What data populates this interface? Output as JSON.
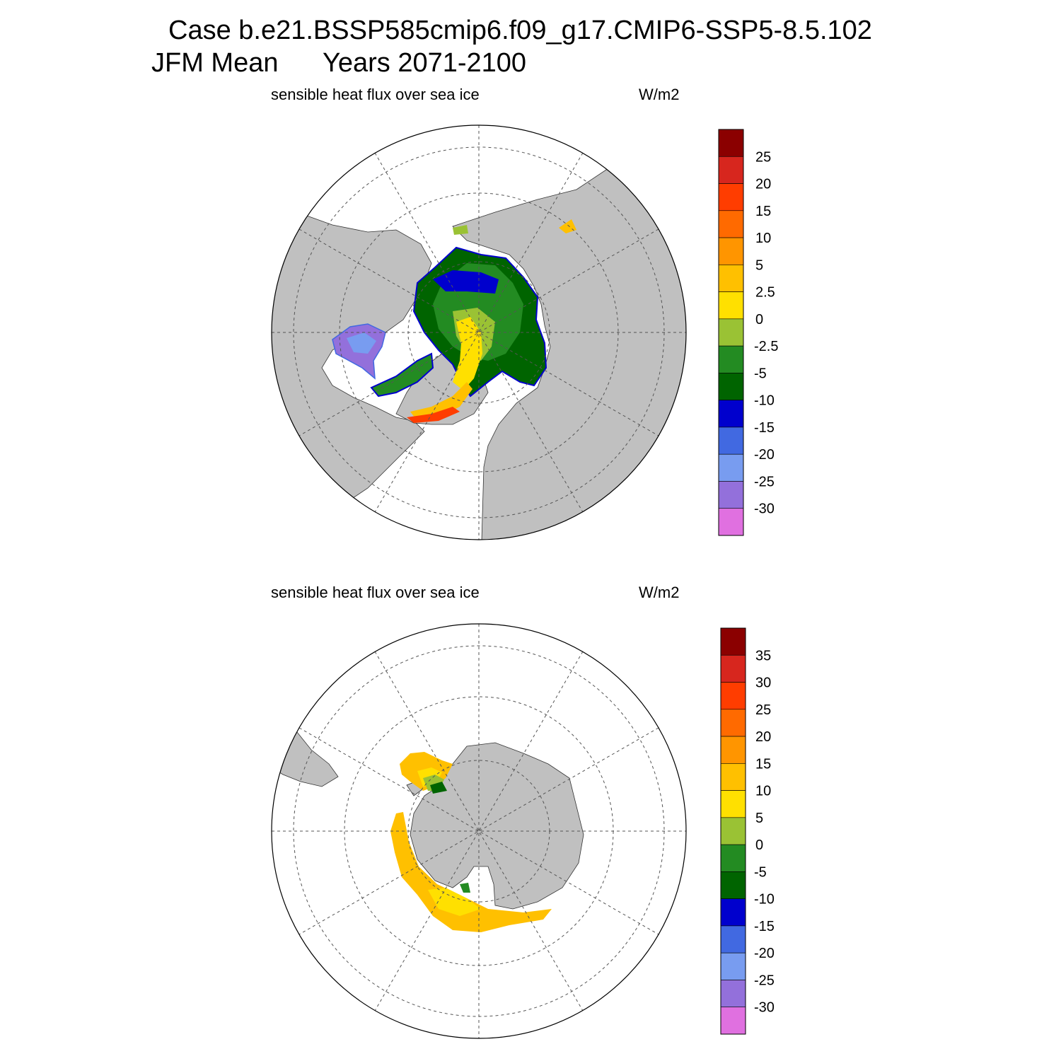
{
  "header": {
    "case_line": "Case b.e21.BSSP585cmip6.f09_g17.CMIP6-SSP5-8.5.102",
    "season": "JFM Mean",
    "years": "Years 2071-2100"
  },
  "colors": {
    "land": "#c0c0c0",
    "ocean": "#ffffff",
    "grid": "#555555"
  },
  "panels": [
    {
      "id": "north",
      "variable": "sensible heat flux over sea ice",
      "units": "W/m2",
      "hemisphere": "Northern",
      "colorbar": {
        "labels": [
          "25",
          "20",
          "15",
          "10",
          "5",
          "2.5",
          "0",
          "-2.5",
          "-5",
          "-10",
          "-15",
          "-20",
          "-25",
          "-30"
        ],
        "colors": [
          "#8b0000",
          "#d7261e",
          "#ff3d00",
          "#ff6a00",
          "#ff9500",
          "#ffc000",
          "#ffe000",
          "#9ac234",
          "#238b22",
          "#006400",
          "#0000cd",
          "#4169e1",
          "#789cf0",
          "#9370db",
          "#e070e0"
        ]
      }
    },
    {
      "id": "south",
      "variable": "sensible heat flux over sea ice",
      "units": "W/m2",
      "hemisphere": "Southern",
      "colorbar": {
        "labels": [
          "35",
          "30",
          "25",
          "20",
          "15",
          "10",
          "5",
          "0",
          "-5",
          "-10",
          "-15",
          "-20",
          "-25",
          "-30"
        ],
        "colors": [
          "#8b0000",
          "#d7261e",
          "#ff3d00",
          "#ff6a00",
          "#ff9500",
          "#ffc000",
          "#ffe000",
          "#9ac234",
          "#238b22",
          "#006400",
          "#0000cd",
          "#4169e1",
          "#789cf0",
          "#9370db",
          "#e070e0"
        ]
      }
    }
  ]
}
